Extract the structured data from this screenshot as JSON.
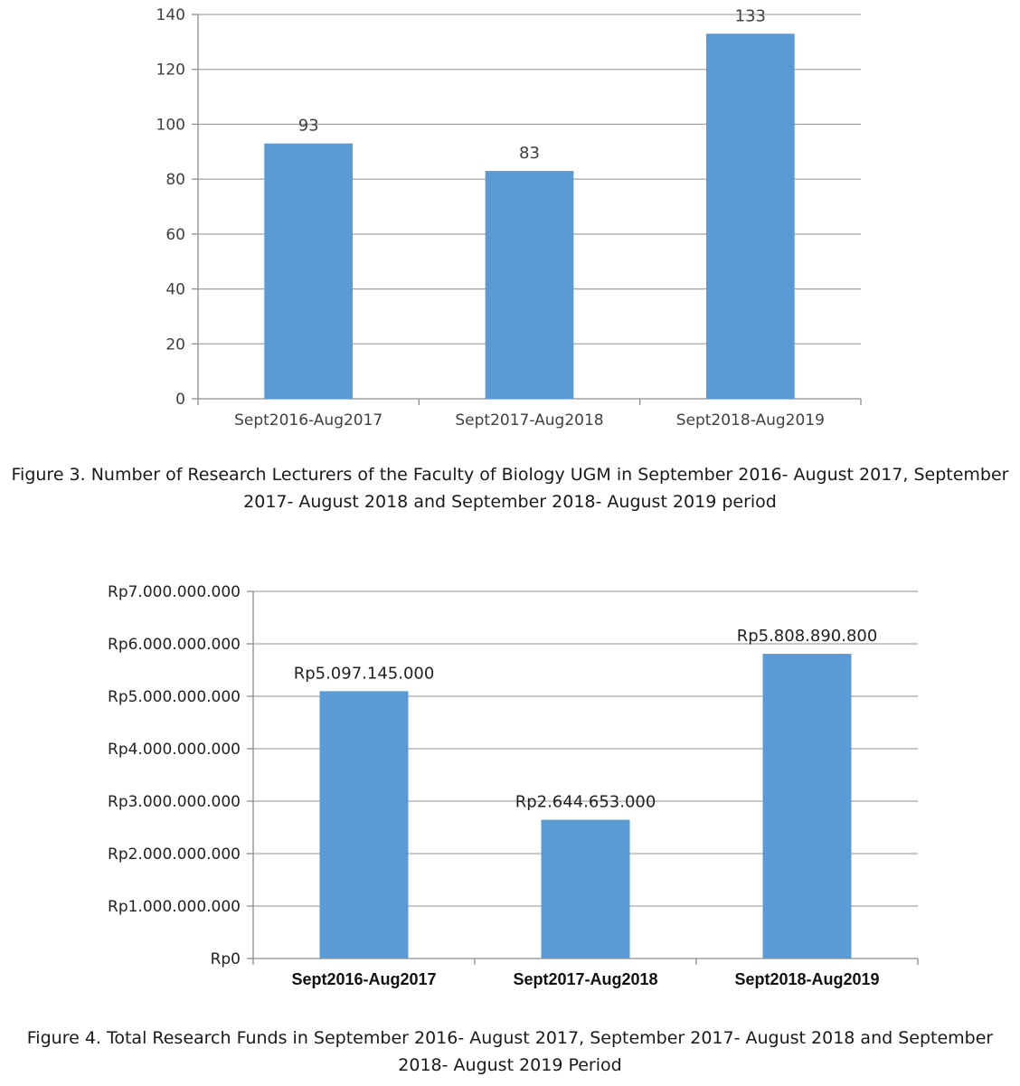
{
  "chart_data": [
    {
      "type": "bar",
      "title": "",
      "xlabel": "",
      "ylabel": "",
      "categories": [
        "Sept2016-Aug2017",
        "Sept2017-Aug2018",
        "Sept2018-Aug2019"
      ],
      "values": [
        93,
        83,
        133
      ],
      "data_labels": [
        "93",
        "83",
        "133"
      ],
      "ylim": [
        0,
        140
      ],
      "yticks": [
        0,
        20,
        40,
        60,
        80,
        100,
        120,
        140
      ],
      "ytick_labels": [
        "0",
        "20",
        "40",
        "60",
        "80",
        "100",
        "120",
        "140"
      ],
      "grid": true,
      "bar_color": "#5b9bd5"
    },
    {
      "type": "bar",
      "title": "",
      "xlabel": "",
      "ylabel": "",
      "categories": [
        "Sept2016-Aug2017",
        "Sept2017-Aug2018",
        "Sept2018-Aug2019"
      ],
      "values": [
        5097145000,
        2644653000,
        5808890800
      ],
      "data_labels": [
        "Rp5.097.145.000",
        "Rp2.644.653.000",
        "Rp5.808.890.800"
      ],
      "ylim": [
        0,
        7000000000
      ],
      "yticks": [
        0,
        1000000000,
        2000000000,
        3000000000,
        4000000000,
        5000000000,
        6000000000,
        7000000000
      ],
      "ytick_labels": [
        "Rp0",
        "Rp1.000.000.000",
        "Rp2.000.000.000",
        "Rp3.000.000.000",
        "Rp4.000.000.000",
        "Rp5.000.000.000",
        "Rp6.000.000.000",
        "Rp7.000.000.000"
      ],
      "grid": true,
      "bar_color": "#5b9bd5"
    }
  ],
  "captions": {
    "figure3": "Figure 3. Number of Research Lecturers of the Faculty of Biology UGM in September 2016- August 2017, September 2017- August 2018 and September 2018- August 2019 period",
    "figure4": "Figure 4. Total Research Funds in September 2016- August 2017, September 2017- August 2018 and September 2018- August 2019 Period"
  },
  "colors": {
    "bar": "#5b9bd5",
    "grid": "#a6a6a6",
    "axis": "#8c8c8c"
  }
}
